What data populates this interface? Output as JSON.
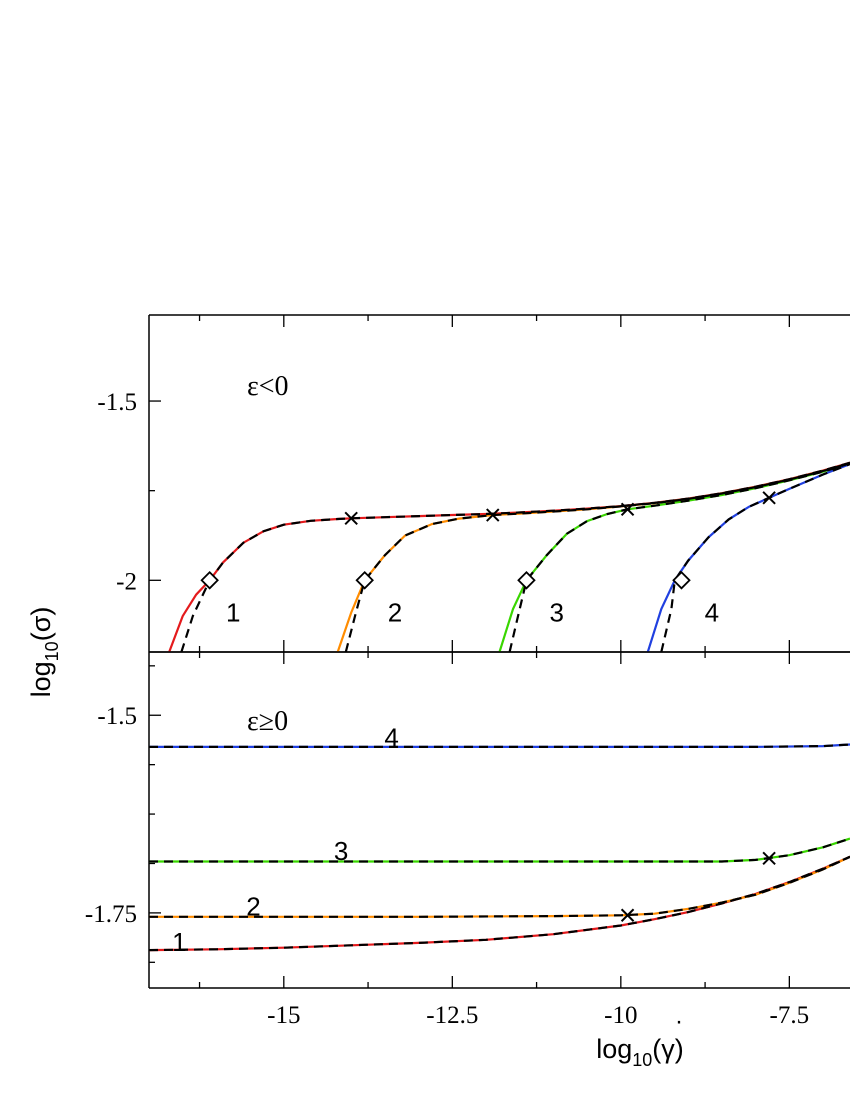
{
  "chart_data": [
    {
      "type": "line",
      "panel_label": "ε<0",
      "xlim": [
        -17.0,
        -6.6
      ],
      "ylim": [
        -2.2,
        -1.26
      ],
      "yticks": [
        -2,
        -1.5
      ],
      "ytick_labels": [
        "-2",
        "-1.5"
      ],
      "xticks": [
        -15,
        -12.5,
        -10,
        -7.5
      ],
      "grid": false,
      "series": [
        {
          "name": "1",
          "color": "#e41a1c",
          "x": [
            -16.7,
            -16.5,
            -16.3,
            -16.1,
            -15.9,
            -15.6,
            -15.3,
            -15.0,
            -14.6,
            -14.2,
            -14.0,
            -13.5,
            -13.0,
            -12.5,
            -12.0,
            -11.5,
            -11.0,
            -10.5,
            -10.0,
            -9.5,
            -9.0,
            -8.5,
            -8.0,
            -7.5,
            -7.0,
            -6.6
          ],
          "y": [
            -2.2,
            -2.1,
            -2.04,
            -2.0,
            -1.95,
            -1.895,
            -1.863,
            -1.845,
            -1.834,
            -1.829,
            -1.827,
            -1.824,
            -1.821,
            -1.818,
            -1.815,
            -1.811,
            -1.806,
            -1.8,
            -1.793,
            -1.784,
            -1.772,
            -1.757,
            -1.739,
            -1.718,
            -1.694,
            -1.672
          ]
        },
        {
          "name": "2",
          "color": "#ff8c00",
          "x": [
            -14.2,
            -14.0,
            -13.8,
            -13.5,
            -13.2,
            -12.8,
            -12.4,
            -11.9,
            -11.5,
            -11.0,
            -10.5,
            -10.0,
            -9.5,
            -9.0,
            -8.5,
            -8.0,
            -7.5,
            -7.0,
            -6.6
          ],
          "y": [
            -2.2,
            -2.09,
            -2.0,
            -1.93,
            -1.875,
            -1.843,
            -1.828,
            -1.818,
            -1.814,
            -1.808,
            -1.802,
            -1.794,
            -1.785,
            -1.773,
            -1.758,
            -1.74,
            -1.719,
            -1.695,
            -1.673
          ]
        },
        {
          "name": "3",
          "color": "#39d600",
          "x": [
            -11.8,
            -11.6,
            -11.4,
            -11.1,
            -10.8,
            -10.5,
            -10.2,
            -9.9,
            -9.5,
            -9.0,
            -8.5,
            -8.0,
            -7.5,
            -7.0,
            -6.6
          ],
          "y": [
            -2.2,
            -2.08,
            -2.0,
            -1.93,
            -1.87,
            -1.835,
            -1.815,
            -1.802,
            -1.792,
            -1.778,
            -1.762,
            -1.743,
            -1.721,
            -1.697,
            -1.674
          ]
        },
        {
          "name": "4",
          "color": "#2040e0",
          "x": [
            -9.6,
            -9.4,
            -9.2,
            -9.0,
            -8.7,
            -8.4,
            -8.1,
            -7.8,
            -7.5,
            -7.0,
            -6.6
          ],
          "y": [
            -2.2,
            -2.08,
            -2.0,
            -1.945,
            -1.88,
            -1.83,
            -1.795,
            -1.77,
            -1.745,
            -1.705,
            -1.676
          ]
        }
      ],
      "dashed_fits": [
        {
          "x": [
            -16.52,
            -16.35,
            -16.1,
            -15.9,
            -15.6,
            -15.3,
            -15.0,
            -14.6,
            -14.2,
            -14.0,
            -13.5,
            -13.0,
            -12.5,
            -12.0,
            -11.5,
            -11.0,
            -10.5,
            -10.0,
            -9.5,
            -9.0,
            -8.5,
            -8.0,
            -7.5,
            -7.0,
            -6.6
          ],
          "y": [
            -2.2,
            -2.1,
            -2.0,
            -1.95,
            -1.895,
            -1.863,
            -1.845,
            -1.834,
            -1.829,
            -1.827,
            -1.824,
            -1.821,
            -1.818,
            -1.815,
            -1.811,
            -1.806,
            -1.8,
            -1.793,
            -1.784,
            -1.772,
            -1.757,
            -1.739,
            -1.718,
            -1.694,
            -1.672
          ]
        },
        {
          "x": [
            -14.08,
            -13.93,
            -13.8,
            -13.5,
            -13.2,
            -12.8,
            -12.4,
            -11.9,
            -11.5,
            -11.0,
            -10.5,
            -10.0,
            -9.5,
            -9.0,
            -8.5,
            -8.0,
            -7.5,
            -7.0,
            -6.6
          ],
          "y": [
            -2.2,
            -2.09,
            -2.0,
            -1.93,
            -1.875,
            -1.843,
            -1.828,
            -1.818,
            -1.814,
            -1.808,
            -1.802,
            -1.794,
            -1.785,
            -1.773,
            -1.758,
            -1.74,
            -1.719,
            -1.695,
            -1.673
          ]
        },
        {
          "x": [
            -11.65,
            -11.5,
            -11.4,
            -11.1,
            -10.8,
            -10.5,
            -10.2,
            -9.9,
            -9.5,
            -9.0,
            -8.5,
            -8.0,
            -7.5,
            -7.0,
            -6.6
          ],
          "y": [
            -2.2,
            -2.08,
            -2.0,
            -1.93,
            -1.87,
            -1.835,
            -1.815,
            -1.802,
            -1.792,
            -1.778,
            -1.762,
            -1.743,
            -1.721,
            -1.697,
            -1.674
          ]
        },
        {
          "x": [
            -9.4,
            -9.25,
            -9.2,
            -9.0,
            -8.7,
            -8.4,
            -8.1,
            -7.8,
            -7.5,
            -7.0,
            -6.6
          ],
          "y": [
            -2.2,
            -2.08,
            -2.0,
            -1.945,
            -1.88,
            -1.83,
            -1.795,
            -1.77,
            -1.745,
            -1.705,
            -1.676
          ]
        }
      ],
      "diamond_markers": [
        {
          "x": -16.1,
          "y": -2.0
        },
        {
          "x": -13.8,
          "y": -2.0
        },
        {
          "x": -11.4,
          "y": -2.0
        },
        {
          "x": -9.1,
          "y": -2.0
        }
      ],
      "cross_markers": [
        {
          "x": -14.0,
          "y": -1.827
        },
        {
          "x": -11.9,
          "y": -1.818
        },
        {
          "x": -9.9,
          "y": -1.802
        },
        {
          "x": -7.8,
          "y": -1.77
        }
      ],
      "curve_labels": [
        {
          "text": "1",
          "x": -15.75,
          "y": -2.09
        },
        {
          "text": "2",
          "x": -13.35,
          "y": -2.09
        },
        {
          "text": "3",
          "x": -10.95,
          "y": -2.09
        },
        {
          "text": "4",
          "x": -8.65,
          "y": -2.09
        }
      ]
    },
    {
      "type": "line",
      "panel_label": "ε≥0",
      "xlim": [
        -17.0,
        -6.6
      ],
      "ylim": [
        -1.845,
        -1.42
      ],
      "yticks": [
        -1.75,
        -1.5
      ],
      "ytick_labels": [
        "-1.75",
        "-1.5"
      ],
      "xticks": [
        -15,
        -12.5,
        -10,
        -7.5
      ],
      "xtick_labels": [
        "-15",
        "-12.5",
        "-10",
        "-7.5"
      ],
      "grid": false,
      "series": [
        {
          "name": "1",
          "color": "#e41a1c",
          "x": [
            -17.0,
            -16.0,
            -15.0,
            -14.0,
            -13.0,
            -12.0,
            -11.0,
            -10.0,
            -9.5,
            -9.0,
            -8.5,
            -8.0,
            -7.5,
            -7.0,
            -6.6
          ],
          "y": [
            -1.797,
            -1.796,
            -1.794,
            -1.791,
            -1.788,
            -1.784,
            -1.777,
            -1.766,
            -1.758,
            -1.749,
            -1.738,
            -1.726,
            -1.711,
            -1.694,
            -1.679
          ]
        },
        {
          "name": "2",
          "color": "#ff8c00",
          "x": [
            -17.0,
            -15.0,
            -13.0,
            -11.0,
            -10.0,
            -9.5,
            -9.0,
            -8.5,
            -8.0,
            -7.5,
            -7.0,
            -6.6
          ],
          "y": [
            -1.755,
            -1.755,
            -1.755,
            -1.754,
            -1.753,
            -1.751,
            -1.745,
            -1.737,
            -1.727,
            -1.712,
            -1.695,
            -1.679
          ]
        },
        {
          "name": "3",
          "color": "#39d600",
          "x": [
            -17.0,
            -15.0,
            -13.0,
            -11.0,
            -9.0,
            -8.5,
            -8.0,
            -7.5,
            -7.0,
            -6.6
          ],
          "y": [
            -1.685,
            -1.685,
            -1.685,
            -1.685,
            -1.685,
            -1.685,
            -1.683,
            -1.677,
            -1.667,
            -1.656
          ]
        },
        {
          "name": "4",
          "color": "#2040e0",
          "x": [
            -17.0,
            -14.0,
            -11.0,
            -9.0,
            -8.0,
            -7.0,
            -6.6
          ],
          "y": [
            -1.54,
            -1.54,
            -1.54,
            -1.54,
            -1.54,
            -1.539,
            -1.537
          ]
        }
      ],
      "dashed_fits": [
        {
          "x": [
            -17.0,
            -16.0,
            -15.0,
            -14.0,
            -13.0,
            -12.0,
            -11.0,
            -10.0,
            -9.5,
            -9.0,
            -8.5,
            -8.0,
            -7.5,
            -7.0,
            -6.6
          ],
          "y": [
            -1.797,
            -1.796,
            -1.794,
            -1.791,
            -1.788,
            -1.784,
            -1.777,
            -1.766,
            -1.758,
            -1.749,
            -1.738,
            -1.726,
            -1.711,
            -1.694,
            -1.679
          ]
        },
        {
          "x": [
            -17.0,
            -15.0,
            -13.0,
            -11.0,
            -10.0,
            -9.5,
            -9.0,
            -8.5,
            -8.0,
            -7.5,
            -7.0,
            -6.6
          ],
          "y": [
            -1.755,
            -1.755,
            -1.755,
            -1.754,
            -1.753,
            -1.751,
            -1.745,
            -1.737,
            -1.727,
            -1.712,
            -1.695,
            -1.679
          ]
        },
        {
          "x": [
            -17.0,
            -15.0,
            -13.0,
            -11.0,
            -9.0,
            -8.5,
            -8.0,
            -7.5,
            -7.0,
            -6.6
          ],
          "y": [
            -1.685,
            -1.685,
            -1.685,
            -1.685,
            -1.685,
            -1.685,
            -1.683,
            -1.677,
            -1.667,
            -1.656
          ]
        },
        {
          "x": [
            -17.0,
            -14.0,
            -11.0,
            -9.0,
            -8.0,
            -7.0,
            -6.6
          ],
          "y": [
            -1.54,
            -1.54,
            -1.54,
            -1.54,
            -1.54,
            -1.539,
            -1.537
          ]
        }
      ],
      "diamond_markers": [],
      "cross_markers": [
        {
          "x": -9.9,
          "y": -1.753
        },
        {
          "x": -7.8,
          "y": -1.681
        }
      ],
      "curve_labels": [
        {
          "text": "1",
          "x": -16.55,
          "y": -1.787
        },
        {
          "text": "2",
          "x": -15.45,
          "y": -1.742
        },
        {
          "text": "3",
          "x": -14.15,
          "y": -1.672
        },
        {
          "text": "4",
          "x": -13.4,
          "y": -1.528
        }
      ]
    }
  ],
  "axes": {
    "ylabel_main": "log",
    "ylabel_sub": "10",
    "ylabel_arg": "(σ)",
    "xlabel_main": "log",
    "xlabel_sub": "10",
    "xlabel_arg": "(γ)"
  }
}
